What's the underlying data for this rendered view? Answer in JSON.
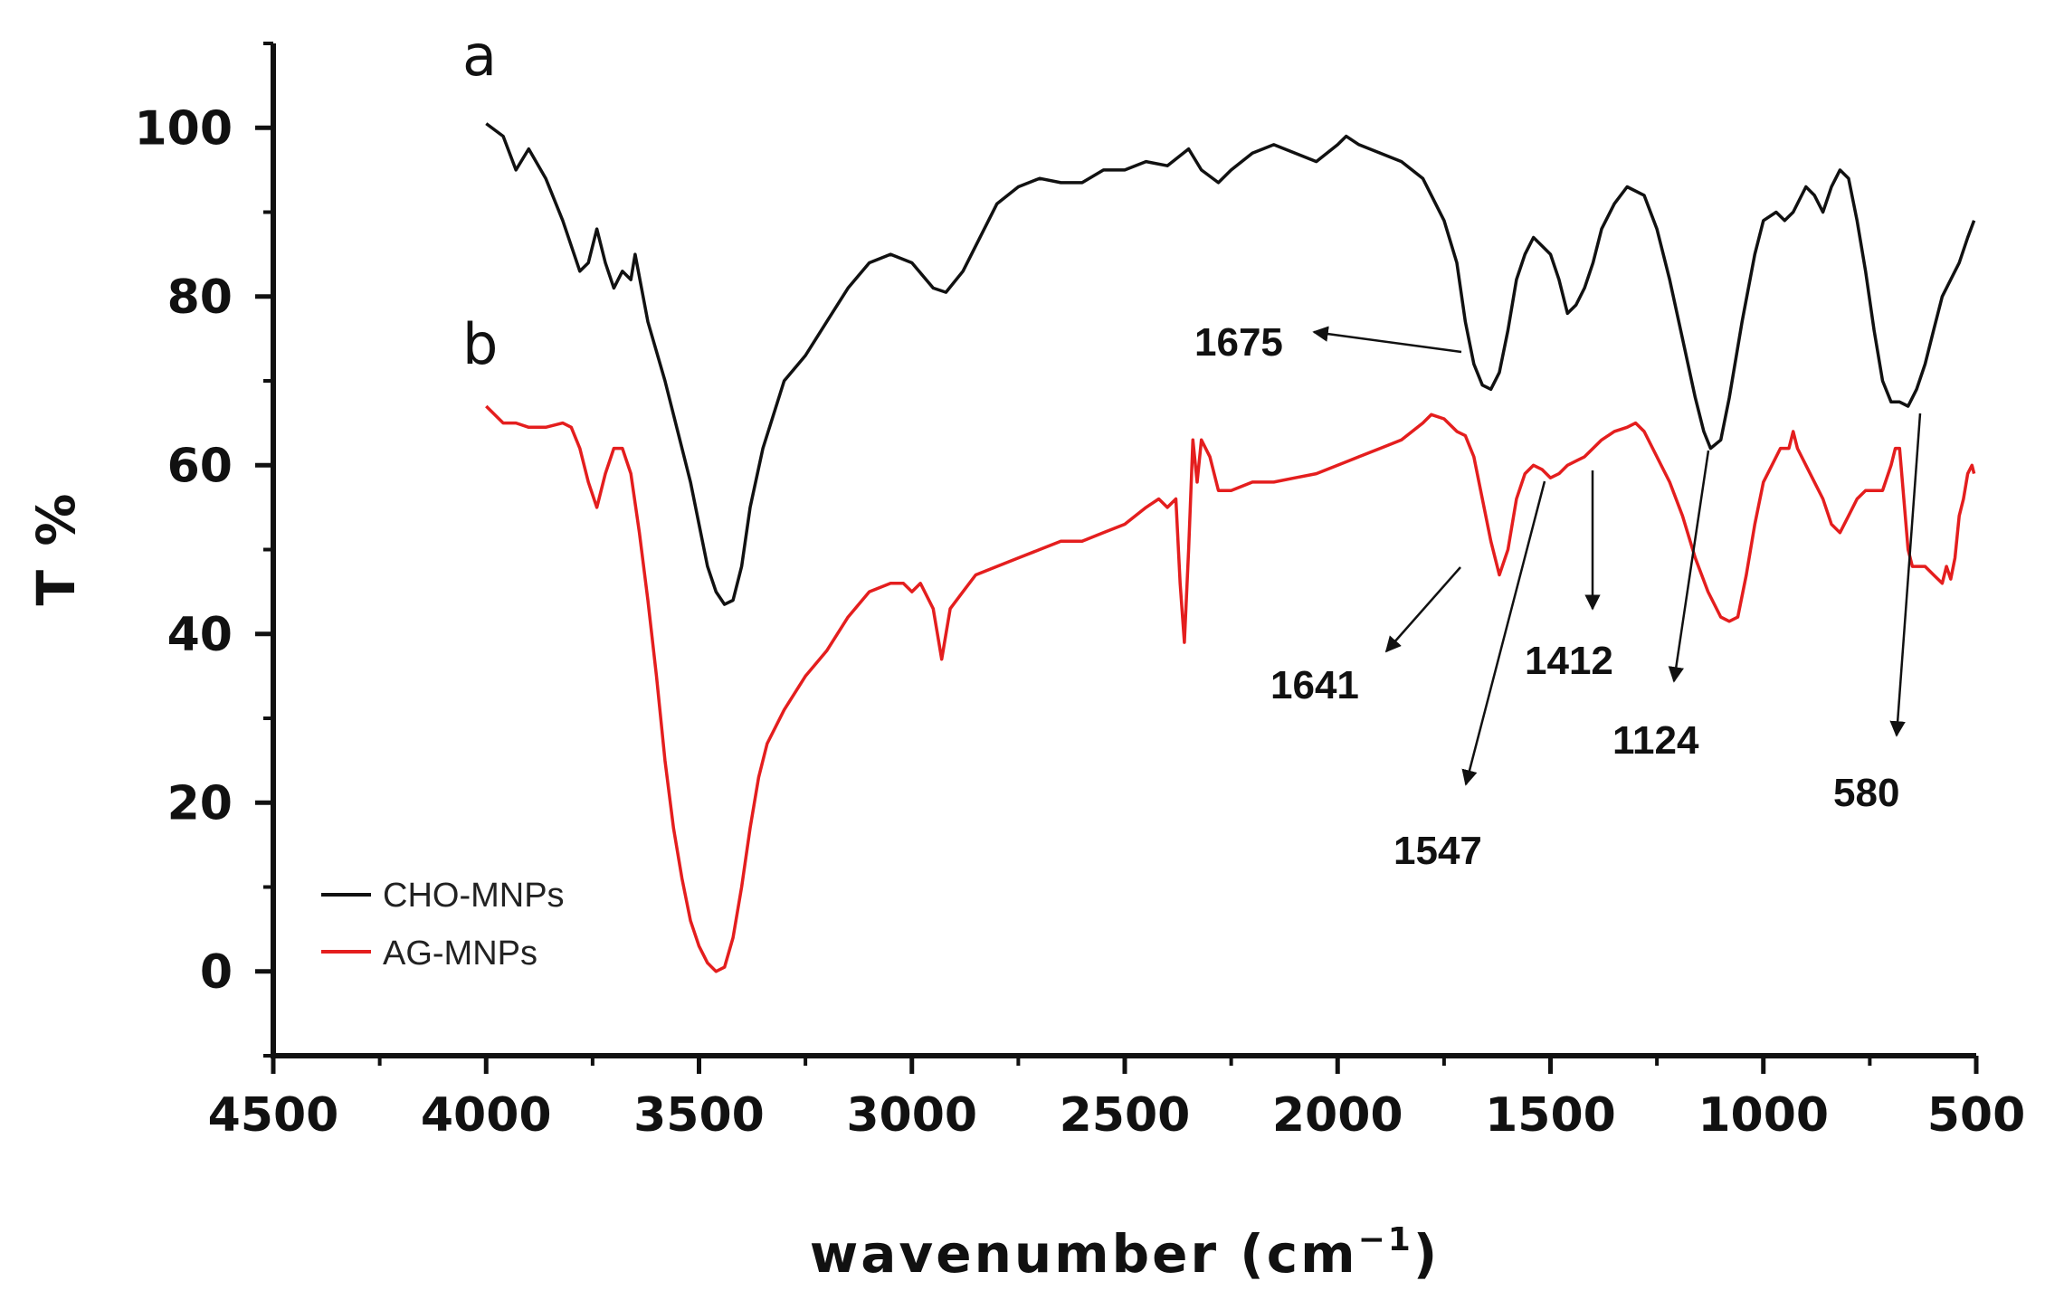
{
  "chart_data": {
    "type": "line",
    "xlabel": "wavenumber (cm",
    "xlabel_sup": "−1",
    "xlabel_close": ")",
    "ylabel": "T %",
    "xlim": [
      4500,
      500
    ],
    "ylim": [
      -10,
      110
    ],
    "x_reversed": true,
    "x_ticks": [
      "4500",
      "4000",
      "3500",
      "3000",
      "2500",
      "2000",
      "1500",
      "1000",
      "500"
    ],
    "y_ticks": [
      "0",
      "20",
      "40",
      "60",
      "80",
      "100"
    ],
    "grid": false,
    "legend_position": "bottom-left",
    "curve_labels": {
      "a": "a",
      "b": "b"
    },
    "series": [
      {
        "name": "CHO-MNPs",
        "color": "#111111",
        "points": [
          [
            4000,
            100.5
          ],
          [
            3960,
            99
          ],
          [
            3930,
            95
          ],
          [
            3900,
            97.5
          ],
          [
            3860,
            94
          ],
          [
            3820,
            89
          ],
          [
            3780,
            83
          ],
          [
            3760,
            84
          ],
          [
            3740,
            88
          ],
          [
            3720,
            84
          ],
          [
            3700,
            81
          ],
          [
            3680,
            83
          ],
          [
            3660,
            82
          ],
          [
            3650,
            85
          ],
          [
            3620,
            77
          ],
          [
            3580,
            70
          ],
          [
            3550,
            64
          ],
          [
            3520,
            58
          ],
          [
            3500,
            53
          ],
          [
            3480,
            48
          ],
          [
            3460,
            45
          ],
          [
            3440,
            43.5
          ],
          [
            3420,
            44
          ],
          [
            3400,
            48
          ],
          [
            3380,
            55
          ],
          [
            3350,
            62
          ],
          [
            3300,
            70
          ],
          [
            3250,
            73
          ],
          [
            3200,
            77
          ],
          [
            3150,
            81
          ],
          [
            3100,
            84
          ],
          [
            3050,
            85
          ],
          [
            3000,
            84
          ],
          [
            2950,
            81
          ],
          [
            2920,
            80.5
          ],
          [
            2880,
            83
          ],
          [
            2850,
            86
          ],
          [
            2800,
            91
          ],
          [
            2750,
            93
          ],
          [
            2700,
            94
          ],
          [
            2650,
            93.5
          ],
          [
            2600,
            93.5
          ],
          [
            2550,
            95
          ],
          [
            2500,
            95
          ],
          [
            2450,
            96
          ],
          [
            2400,
            95.5
          ],
          [
            2350,
            97.5
          ],
          [
            2320,
            95
          ],
          [
            2280,
            93.5
          ],
          [
            2250,
            95
          ],
          [
            2200,
            97
          ],
          [
            2150,
            98
          ],
          [
            2100,
            97
          ],
          [
            2050,
            96
          ],
          [
            2000,
            98
          ],
          [
            1980,
            99
          ],
          [
            1950,
            98
          ],
          [
            1900,
            97
          ],
          [
            1850,
            96
          ],
          [
            1800,
            94
          ],
          [
            1750,
            89
          ],
          [
            1720,
            84
          ],
          [
            1700,
            77
          ],
          [
            1680,
            72
          ],
          [
            1660,
            69.5
          ],
          [
            1640,
            69
          ],
          [
            1620,
            71
          ],
          [
            1600,
            76
          ],
          [
            1580,
            82
          ],
          [
            1560,
            85
          ],
          [
            1540,
            87
          ],
          [
            1520,
            86
          ],
          [
            1500,
            85
          ],
          [
            1480,
            82
          ],
          [
            1460,
            78
          ],
          [
            1440,
            79
          ],
          [
            1420,
            81
          ],
          [
            1400,
            84
          ],
          [
            1380,
            88
          ],
          [
            1350,
            91
          ],
          [
            1320,
            93
          ],
          [
            1280,
            92
          ],
          [
            1250,
            88
          ],
          [
            1220,
            82
          ],
          [
            1190,
            75
          ],
          [
            1160,
            68
          ],
          [
            1140,
            64
          ],
          [
            1124,
            62
          ],
          [
            1100,
            63
          ],
          [
            1080,
            68
          ],
          [
            1050,
            77
          ],
          [
            1020,
            85
          ],
          [
            1000,
            89
          ],
          [
            970,
            90
          ],
          [
            950,
            89
          ],
          [
            930,
            90
          ],
          [
            900,
            93
          ],
          [
            880,
            92
          ],
          [
            860,
            90
          ],
          [
            840,
            93
          ],
          [
            820,
            95
          ],
          [
            800,
            94
          ],
          [
            780,
            89
          ],
          [
            760,
            83
          ],
          [
            740,
            76
          ],
          [
            720,
            70
          ],
          [
            700,
            67.5
          ],
          [
            680,
            67.5
          ],
          [
            660,
            67
          ],
          [
            640,
            69
          ],
          [
            620,
            72
          ],
          [
            600,
            76
          ],
          [
            580,
            80
          ],
          [
            560,
            82
          ],
          [
            540,
            84
          ],
          [
            520,
            87
          ],
          [
            505,
            89
          ]
        ]
      },
      {
        "name": "AG-MNPs",
        "color": "#e41e1e",
        "points": [
          [
            4000,
            67
          ],
          [
            3960,
            65
          ],
          [
            3930,
            65
          ],
          [
            3900,
            64.5
          ],
          [
            3860,
            64.5
          ],
          [
            3820,
            65
          ],
          [
            3800,
            64.5
          ],
          [
            3780,
            62
          ],
          [
            3760,
            58
          ],
          [
            3740,
            55
          ],
          [
            3720,
            59
          ],
          [
            3700,
            62
          ],
          [
            3680,
            62
          ],
          [
            3660,
            59
          ],
          [
            3640,
            52
          ],
          [
            3620,
            44
          ],
          [
            3600,
            35
          ],
          [
            3580,
            25
          ],
          [
            3560,
            17
          ],
          [
            3540,
            11
          ],
          [
            3520,
            6
          ],
          [
            3500,
            3
          ],
          [
            3480,
            1
          ],
          [
            3460,
            0
          ],
          [
            3440,
            0.5
          ],
          [
            3420,
            4
          ],
          [
            3400,
            10
          ],
          [
            3380,
            17
          ],
          [
            3360,
            23
          ],
          [
            3340,
            27
          ],
          [
            3300,
            31
          ],
          [
            3250,
            35
          ],
          [
            3200,
            38
          ],
          [
            3150,
            42
          ],
          [
            3100,
            45
          ],
          [
            3050,
            46
          ],
          [
            3020,
            46
          ],
          [
            3000,
            45
          ],
          [
            2980,
            46
          ],
          [
            2950,
            43
          ],
          [
            2930,
            37
          ],
          [
            2910,
            43
          ],
          [
            2880,
            45
          ],
          [
            2850,
            47
          ],
          [
            2800,
            48
          ],
          [
            2750,
            49
          ],
          [
            2700,
            50
          ],
          [
            2650,
            51
          ],
          [
            2600,
            51
          ],
          [
            2550,
            52
          ],
          [
            2500,
            53
          ],
          [
            2450,
            55
          ],
          [
            2420,
            56
          ],
          [
            2400,
            55
          ],
          [
            2380,
            56
          ],
          [
            2370,
            46
          ],
          [
            2360,
            39
          ],
          [
            2350,
            50
          ],
          [
            2340,
            63
          ],
          [
            2330,
            58
          ],
          [
            2320,
            63
          ],
          [
            2300,
            61
          ],
          [
            2280,
            57
          ],
          [
            2250,
            57
          ],
          [
            2200,
            58
          ],
          [
            2150,
            58
          ],
          [
            2100,
            58.5
          ],
          [
            2050,
            59
          ],
          [
            2000,
            60
          ],
          [
            1950,
            61
          ],
          [
            1900,
            62
          ],
          [
            1850,
            63
          ],
          [
            1800,
            65
          ],
          [
            1780,
            66
          ],
          [
            1750,
            65.5
          ],
          [
            1720,
            64
          ],
          [
            1700,
            63.5
          ],
          [
            1680,
            61
          ],
          [
            1660,
            56
          ],
          [
            1640,
            51
          ],
          [
            1620,
            47
          ],
          [
            1600,
            50
          ],
          [
            1580,
            56
          ],
          [
            1560,
            59
          ],
          [
            1540,
            60
          ],
          [
            1520,
            59.5
          ],
          [
            1500,
            58.5
          ],
          [
            1480,
            59
          ],
          [
            1460,
            60
          ],
          [
            1440,
            60.5
          ],
          [
            1420,
            61
          ],
          [
            1400,
            62
          ],
          [
            1380,
            63
          ],
          [
            1350,
            64
          ],
          [
            1320,
            64.5
          ],
          [
            1300,
            65
          ],
          [
            1280,
            64
          ],
          [
            1250,
            61
          ],
          [
            1220,
            58
          ],
          [
            1190,
            54
          ],
          [
            1160,
            49
          ],
          [
            1130,
            45
          ],
          [
            1100,
            42
          ],
          [
            1080,
            41.5
          ],
          [
            1060,
            42
          ],
          [
            1040,
            47
          ],
          [
            1020,
            53
          ],
          [
            1000,
            58
          ],
          [
            980,
            60
          ],
          [
            960,
            62
          ],
          [
            940,
            62
          ],
          [
            930,
            64
          ],
          [
            920,
            62
          ],
          [
            900,
            60
          ],
          [
            880,
            58
          ],
          [
            860,
            56
          ],
          [
            840,
            53
          ],
          [
            820,
            52
          ],
          [
            800,
            54
          ],
          [
            780,
            56
          ],
          [
            760,
            57
          ],
          [
            740,
            57
          ],
          [
            720,
            57
          ],
          [
            700,
            60
          ],
          [
            690,
            62
          ],
          [
            680,
            62
          ],
          [
            670,
            56
          ],
          [
            660,
            50
          ],
          [
            650,
            48
          ],
          [
            640,
            48
          ],
          [
            620,
            48
          ],
          [
            600,
            47
          ],
          [
            580,
            46
          ],
          [
            570,
            48
          ],
          [
            560,
            46.5
          ],
          [
            550,
            49
          ],
          [
            540,
            54
          ],
          [
            530,
            56
          ],
          [
            520,
            59
          ],
          [
            510,
            60
          ],
          [
            505,
            59
          ]
        ]
      }
    ],
    "annotations": [
      {
        "text": "1675",
        "color": "#111111"
      },
      {
        "text": "1641",
        "color": "#111111"
      },
      {
        "text": "1547",
        "color": "#111111"
      },
      {
        "text": "1412",
        "color": "#111111"
      },
      {
        "text": "1124",
        "color": "#111111"
      },
      {
        "text": "580",
        "color": "#111111"
      }
    ]
  }
}
